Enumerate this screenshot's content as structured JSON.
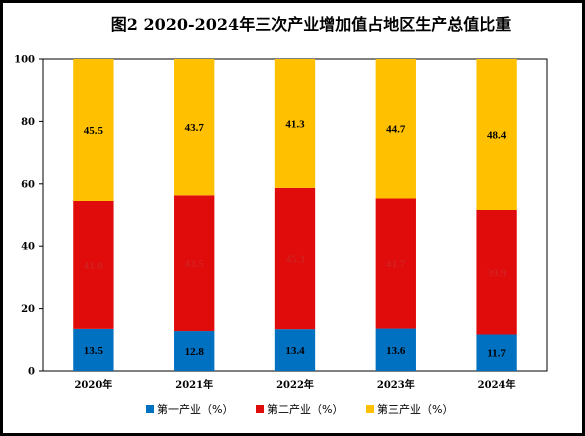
{
  "chart_data": {
    "type": "bar",
    "stacked": true,
    "title": "图2  2020-2024年三次产业增加值占地区生产总值比重",
    "categories": [
      "2020年",
      "2021年",
      "2022年",
      "2023年",
      "2024年"
    ],
    "series": [
      {
        "name": "第一产业（%）",
        "color": "#0070c0",
        "label_color": "#000000",
        "values": [
          13.5,
          12.8,
          13.4,
          13.6,
          11.7
        ]
      },
      {
        "name": "第二产业（%）",
        "color": "#e00b0b",
        "label_color": "#d42020",
        "values": [
          41.0,
          43.5,
          45.3,
          41.7,
          39.9
        ]
      },
      {
        "name": "第三产业（%）",
        "color": "#ffc000",
        "label_color": "#000000",
        "values": [
          45.5,
          43.7,
          41.3,
          44.7,
          48.4
        ]
      }
    ],
    "ylim": [
      0,
      100
    ],
    "yticks": [
      0,
      20,
      40,
      60,
      80,
      100
    ],
    "xlabel": "",
    "ylabel": "",
    "legend": "bottom",
    "grid": false
  }
}
